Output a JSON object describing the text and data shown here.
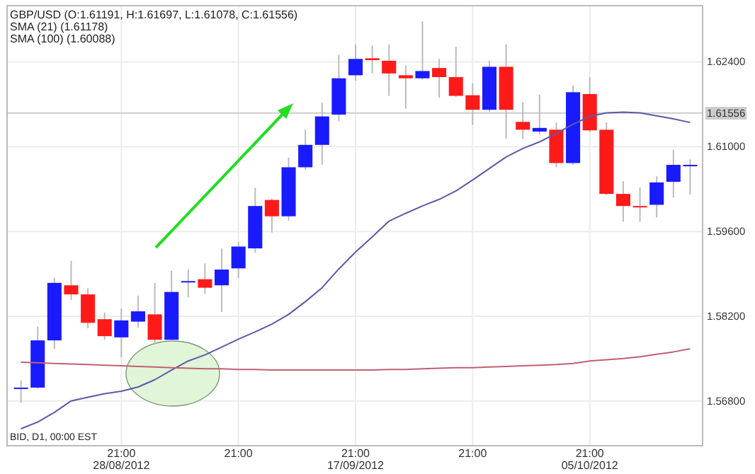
{
  "chart_data": {
    "type": "candlestick",
    "categories": [
      null,
      null,
      null,
      null,
      null,
      null,
      "21:00\n28/08/2012",
      null,
      null,
      null,
      null,
      null,
      null,
      "21:00",
      null,
      null,
      null,
      null,
      null,
      null,
      "21:00\n17/09/2012",
      null,
      null,
      null,
      null,
      null,
      null,
      "21:00",
      null,
      null,
      null,
      null,
      null,
      null,
      "21:00\n05/10/2012",
      null,
      null,
      null,
      null,
      null,
      null
    ],
    "ohlc": [
      [
        1.5702,
        1.5714,
        1.5677,
        1.5702
      ],
      [
        1.5702,
        1.5803,
        1.57,
        1.578
      ],
      [
        1.578,
        1.5883,
        1.5766,
        1.5875
      ],
      [
        1.5871,
        1.5911,
        1.5847,
        1.5856
      ],
      [
        1.5856,
        1.5866,
        1.58,
        1.5809
      ],
      [
        1.5815,
        1.5826,
        1.5781,
        1.5787
      ],
      [
        1.5785,
        1.5833,
        1.5752,
        1.5813
      ],
      [
        1.5811,
        1.5854,
        1.5801,
        1.5828
      ],
      [
        1.5823,
        1.5875,
        1.5773,
        1.5781
      ],
      [
        1.5781,
        1.5895,
        1.5778,
        1.586
      ],
      [
        1.5877,
        1.5897,
        1.5851,
        1.5878
      ],
      [
        1.5881,
        1.5907,
        1.5857,
        1.5867
      ],
      [
        1.5871,
        1.5932,
        1.5827,
        1.5897
      ],
      [
        1.5899,
        1.5943,
        1.5883,
        1.5935
      ],
      [
        1.5932,
        1.6032,
        1.5925,
        1.6002
      ],
      [
        1.6012,
        1.6014,
        1.5958,
        1.5985
      ],
      [
        1.5985,
        1.6082,
        1.5978,
        1.6066
      ],
      [
        1.6066,
        1.6128,
        1.6062,
        1.6103
      ],
      [
        1.6103,
        1.6173,
        1.607,
        1.615
      ],
      [
        1.6153,
        1.6252,
        1.6142,
        1.6213
      ],
      [
        1.6218,
        1.6269,
        1.6209,
        1.6245
      ],
      [
        1.6246,
        1.6267,
        1.6221,
        1.6243
      ],
      [
        1.6242,
        1.6269,
        1.6184,
        1.6221
      ],
      [
        1.6218,
        1.6234,
        1.6163,
        1.6213
      ],
      [
        1.6213,
        1.6307,
        1.6211,
        1.6225
      ],
      [
        1.623,
        1.6245,
        1.6181,
        1.6215
      ],
      [
        1.6215,
        1.6265,
        1.6182,
        1.6184
      ],
      [
        1.6185,
        1.6205,
        1.6136,
        1.6161
      ],
      [
        1.6161,
        1.6242,
        1.6158,
        1.6232
      ],
      [
        1.6232,
        1.6269,
        1.6113,
        1.6161
      ],
      [
        1.6141,
        1.6173,
        1.6113,
        1.6128
      ],
      [
        1.6125,
        1.6186,
        1.612,
        1.6131
      ],
      [
        1.6128,
        1.614,
        1.6066,
        1.6073
      ],
      [
        1.6073,
        1.6201,
        1.607,
        1.619
      ],
      [
        1.6187,
        1.6215,
        1.6124,
        1.6127
      ],
      [
        1.6128,
        1.614,
        1.602,
        1.6022
      ],
      [
        1.6022,
        1.6043,
        1.5976,
        1.6002
      ],
      [
        1.6002,
        1.6033,
        1.5976,
        1.6
      ],
      [
        1.6004,
        1.6051,
        1.5983,
        1.6041
      ],
      [
        1.6042,
        1.6095,
        1.6016,
        1.607
      ],
      [
        1.6068,
        1.6079,
        1.6021,
        1.607
      ]
    ],
    "colors": [
      "#1a1aff",
      "#1a1aff",
      "#1a1aff",
      "#ff1a1a",
      "#ff1a1a",
      "#ff1a1a",
      "#1a1aff",
      "#1a1aff",
      "#ff1a1a",
      "#1a1aff",
      "#1a1aff",
      "#ff1a1a",
      "#1a1aff",
      "#1a1aff",
      "#1a1aff",
      "#ff1a1a",
      "#1a1aff",
      "#1a1aff",
      "#1a1aff",
      "#1a1aff",
      "#1a1aff",
      "#ff1a1a",
      "#ff1a1a",
      "#ff1a1a",
      "#1a1aff",
      "#ff1a1a",
      "#ff1a1a",
      "#ff1a1a",
      "#1a1aff",
      "#ff1a1a",
      "#ff1a1a",
      "#1a1aff",
      "#ff1a1a",
      "#1a1aff",
      "#ff1a1a",
      "#ff1a1a",
      "#ff1a1a",
      "#ff1a1a",
      "#1a1aff",
      "#1a1aff",
      "#1a1aff"
    ],
    "series": [
      {
        "type": "line",
        "color": "#5a5aa8",
        "values": [
          1.5634,
          1.5645,
          1.5661,
          1.568,
          1.5686,
          1.5692,
          1.5696,
          1.5703,
          1.5715,
          1.5731,
          1.5746,
          1.5756,
          1.5769,
          1.5782,
          1.5794,
          1.5807,
          1.5823,
          1.5844,
          1.5867,
          1.5898,
          1.5926,
          1.5951,
          1.5977,
          1.599,
          1.6002,
          1.6013,
          1.6027,
          1.6045,
          1.6064,
          1.6083,
          1.6097,
          1.6108,
          1.6122,
          1.6137,
          1.615,
          1.6156,
          1.6157,
          1.6156,
          1.6151,
          1.6146,
          1.614
        ]
      },
      {
        "type": "line",
        "color": "#c06070",
        "values": [
          1.5744,
          1.5743,
          1.5742,
          1.5741,
          1.574,
          1.5739,
          1.5738,
          1.5737,
          1.5736,
          1.5735,
          1.5734,
          1.5733,
          1.5733,
          1.5732,
          1.5732,
          1.5731,
          1.5731,
          1.5731,
          1.5731,
          1.5731,
          1.5731,
          1.5731,
          1.5732,
          1.5732,
          1.5733,
          1.5734,
          1.5735,
          1.5735,
          1.5736,
          1.5737,
          1.5738,
          1.5739,
          1.574,
          1.5742,
          1.5746,
          1.5748,
          1.575,
          1.5753,
          1.5757,
          1.5761,
          1.5766
        ]
      }
    ],
    "ylim": [
      1.5606,
      1.6333
    ],
    "yticks": [
      {
        "value": 1.568,
        "label": "1.56800"
      },
      {
        "value": 1.582,
        "label": "1.58200"
      },
      {
        "value": 1.596,
        "label": "1.59600"
      },
      {
        "value": 1.61,
        "label": "1.61000"
      },
      {
        "value": 1.624,
        "label": "1.62400"
      }
    ],
    "grid": true,
    "ref_lines": [
      {
        "axis": "y",
        "value": 1.61556,
        "label": "1.61556",
        "color": "#cccccc"
      }
    ],
    "annotations": [
      "GBP/USD (O:1.61191, H:1.61697, L:1.61078, C:1.61556)",
      "SMA (21) (1.61178)",
      "SMA (100) (1.60088)",
      "BID, D1, 00:00 EST"
    ]
  }
}
